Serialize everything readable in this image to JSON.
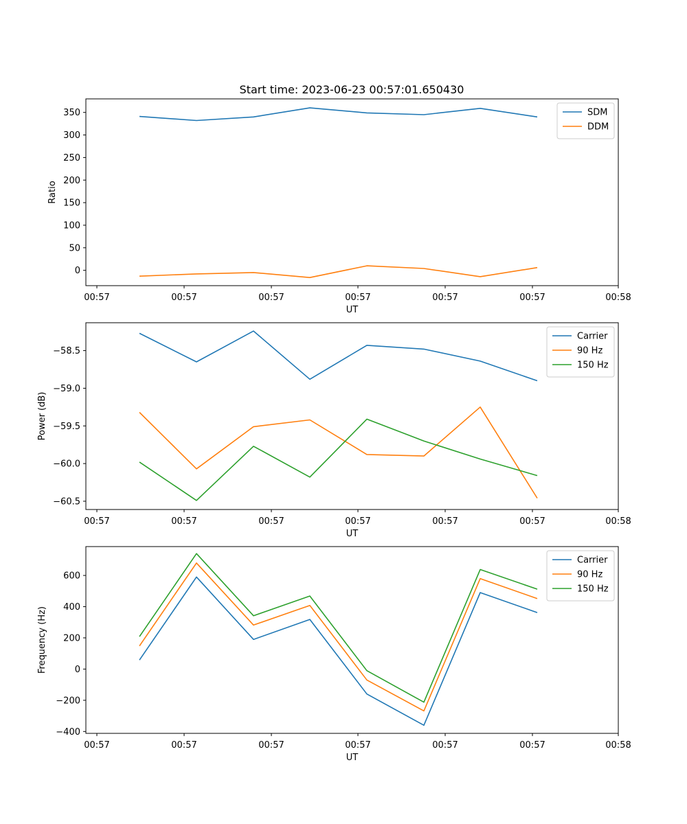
{
  "figure": {
    "title": "Start time: 2023-06-23 00:57:01.650430"
  },
  "colors": {
    "blue": "#1f77b4",
    "orange": "#ff7f0e",
    "green": "#2ca02c"
  },
  "chart_data": [
    {
      "type": "line",
      "title": "Start time: 2023-06-23 00:57:01.650430",
      "xlabel": "UT",
      "ylabel": "Ratio",
      "x_tick_labels": [
        "00:57",
        "00:57",
        "00:57",
        "00:57",
        "00:57",
        "00:57",
        "00:58"
      ],
      "y_ticks": [
        0,
        50,
        100,
        150,
        200,
        250,
        300,
        350
      ],
      "y_tick_labels": [
        "0",
        "50",
        "100",
        "150",
        "200",
        "250",
        "300",
        "350"
      ],
      "ylim": [
        -34,
        380
      ],
      "grid": false,
      "legend_position": "top-right",
      "series": [
        {
          "name": "SDM",
          "color": "#1f77b4",
          "values": [
            341,
            332,
            340,
            360,
            349,
            345,
            359,
            340
          ]
        },
        {
          "name": "DDM",
          "color": "#ff7f0e",
          "values": [
            -13,
            -8,
            -5,
            -16,
            10,
            4,
            -14,
            6
          ]
        }
      ]
    },
    {
      "type": "line",
      "title": "",
      "xlabel": "UT",
      "ylabel": "Power (dB)",
      "x_tick_labels": [
        "00:57",
        "00:57",
        "00:57",
        "00:57",
        "00:57",
        "00:57",
        "00:58"
      ],
      "y_ticks": [
        -58.5,
        -59.0,
        -59.5,
        -60.0,
        -60.5
      ],
      "y_tick_labels": [
        "−58.5",
        "−59.0",
        "−59.5",
        "−60.0",
        "−60.5"
      ],
      "ylim": [
        -60.61,
        -58.13
      ],
      "grid": false,
      "legend_position": "top-right",
      "series": [
        {
          "name": "Carrier",
          "color": "#1f77b4",
          "values": [
            -58.27,
            -58.65,
            -58.24,
            -58.88,
            -58.43,
            -58.48,
            -58.64,
            -58.9
          ]
        },
        {
          "name": "90 Hz",
          "color": "#ff7f0e",
          "values": [
            -59.32,
            -60.07,
            -59.51,
            -59.42,
            -59.88,
            -59.9,
            -59.25,
            -60.46
          ]
        },
        {
          "name": "150 Hz",
          "color": "#2ca02c",
          "values": [
            -59.98,
            -60.49,
            -59.77,
            -60.18,
            -59.41,
            -59.7,
            -59.94,
            -60.16
          ]
        }
      ]
    },
    {
      "type": "line",
      "title": "",
      "xlabel": "UT",
      "ylabel": "Frequency (Hz)",
      "x_tick_labels": [
        "00:57",
        "00:57",
        "00:57",
        "00:57",
        "00:57",
        "00:57",
        "00:58"
      ],
      "y_ticks": [
        600,
        400,
        200,
        0,
        -200,
        -400
      ],
      "y_tick_labels": [
        "600",
        "400",
        "200",
        "0",
        "−200",
        "−400"
      ],
      "ylim": [
        -412,
        785
      ],
      "grid": false,
      "legend_position": "top-right",
      "series": [
        {
          "name": "Carrier",
          "color": "#1f77b4",
          "values": [
            58,
            590,
            190,
            318,
            -160,
            -360,
            490,
            362
          ]
        },
        {
          "name": "90 Hz",
          "color": "#ff7f0e",
          "values": [
            148,
            680,
            282,
            408,
            -70,
            -268,
            580,
            452
          ]
        },
        {
          "name": "150 Hz",
          "color": "#2ca02c",
          "values": [
            208,
            740,
            342,
            468,
            -10,
            -212,
            638,
            512
          ]
        }
      ]
    }
  ]
}
